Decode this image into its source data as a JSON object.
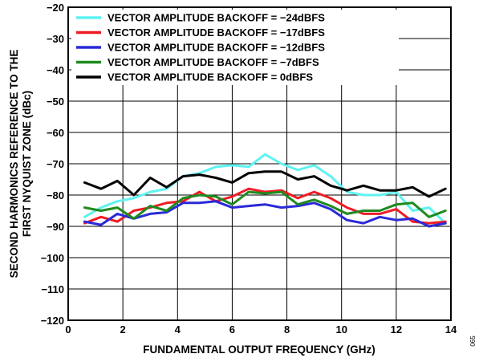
{
  "chart_data": {
    "type": "line",
    "title": "",
    "xlabel": "FUNDAMENTAL OUTPUT FREQUENCY (GHz)",
    "ylabel": "SECOND HARMONICS REFERENCE TO THE FIRST NYQUIST ZONE (dBc)",
    "ylabel_lines": [
      "SECOND HARMONICS REFERENCE TO THE",
      "FIRST NYQUIST ZONE (dBc)"
    ],
    "xlim": [
      0,
      14
    ],
    "ylim": [
      -120,
      -20
    ],
    "xticks": [
      0,
      2,
      4,
      6,
      8,
      10,
      12,
      14
    ],
    "xtick_labels": [
      "0",
      "2",
      "4",
      "6",
      "8",
      "10",
      "12",
      "14"
    ],
    "yticks": [
      -120,
      -110,
      -100,
      -90,
      -80,
      -70,
      -60,
      -50,
      -40,
      -30,
      -20
    ],
    "ytick_labels": [
      "−120",
      "−110",
      "−100",
      "−90",
      "−80",
      "−70",
      "−60",
      "−50",
      "−40",
      "−30",
      "−20"
    ],
    "grid": true,
    "legend_position": "top-left",
    "x": [
      0.6,
      1.2,
      1.8,
      2.4,
      3.0,
      3.6,
      4.2,
      4.8,
      5.4,
      6.0,
      6.6,
      7.2,
      7.8,
      8.4,
      9.0,
      9.6,
      10.2,
      10.8,
      11.4,
      12.0,
      12.6,
      13.2,
      13.8
    ],
    "series": [
      {
        "name": "VECTOR AMPLITUDE BACKOFF = −24dBFS",
        "color": "#5ef2f2",
        "values": [
          -87,
          -84,
          -82,
          -81,
          -79,
          -78,
          -74,
          -73,
          -71,
          -70.5,
          -71,
          -67,
          -70,
          -72,
          -70.5,
          -74,
          -79,
          -80,
          -80,
          -79,
          -85,
          -84,
          -89
        ]
      },
      {
        "name": "VECTOR AMPLITUDE BACKOFF = −17dBFS",
        "color": "#ee1c25",
        "values": [
          -89,
          -87,
          -88.5,
          -85,
          -84,
          -82.5,
          -82,
          -79,
          -82,
          -80.5,
          -78,
          -79,
          -78.5,
          -81,
          -79,
          -81,
          -84,
          -86,
          -86,
          -84.5,
          -88.5,
          -89,
          -88.5
        ]
      },
      {
        "name": "VECTOR AMPLITUDE BACKOFF = −12dBFS",
        "color": "#2a2ad8",
        "values": [
          -88.5,
          -89.5,
          -86,
          -87.5,
          -86,
          -85.5,
          -82.5,
          -82.5,
          -82,
          -84,
          -83.5,
          -83,
          -84,
          -83.5,
          -82.5,
          -84.5,
          -88,
          -89,
          -87,
          -88,
          -87.5,
          -90,
          -89
        ]
      },
      {
        "name": "VECTOR AMPLITUDE BACKOFF = −7dBFS",
        "color": "#1f8a1f",
        "values": [
          -84,
          -85,
          -84,
          -87.5,
          -83.5,
          -85,
          -81,
          -80,
          -80.5,
          -83,
          -79,
          -79.5,
          -79,
          -83,
          -81.5,
          -83.5,
          -86,
          -85,
          -85,
          -83,
          -82.5,
          -87,
          -85
        ]
      },
      {
        "name": "VECTOR AMPLITUDE BACKOFF = 0dBFS",
        "color": "#000000",
        "values": [
          -76,
          -78,
          -75.5,
          -80,
          -74.5,
          -77.5,
          -74,
          -73.5,
          -74.5,
          -76,
          -73,
          -72.5,
          -72.5,
          -75,
          -74,
          -77,
          -78.5,
          -77,
          -78.5,
          -78.5,
          -77.5,
          -80.5,
          -78
        ]
      }
    ]
  },
  "figure_code": "065"
}
